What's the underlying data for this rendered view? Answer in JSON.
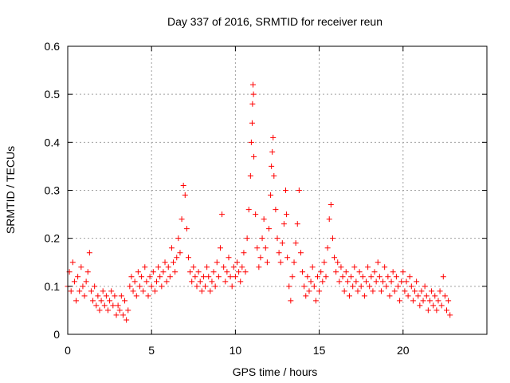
{
  "chart_data": {
    "type": "scatter",
    "title": "Day 337 of 2016, SRMTID for receiver reun",
    "xlabel": "GPS time / hours",
    "ylabel": "SRMTID / TECUs",
    "xlim": [
      0,
      25
    ],
    "ylim": [
      0,
      0.6
    ],
    "xticks": [
      0,
      5,
      10,
      15,
      20
    ],
    "yticks": [
      0,
      0.1,
      0.2,
      0.3,
      0.4,
      0.5,
      0.6
    ],
    "xtick_labels": [
      "0",
      "5",
      "10",
      "15",
      "20"
    ],
    "ytick_labels": [
      "0",
      "0.1",
      "0.2",
      "0.3",
      "0.4",
      "0.5",
      "0.6"
    ],
    "grid": true,
    "marker": "+",
    "series": [
      {
        "name": "SRMTID",
        "color": "#ff0000",
        "points": [
          [
            0.0,
            0.1
          ],
          [
            0.1,
            0.13
          ],
          [
            0.2,
            0.09
          ],
          [
            0.3,
            0.15
          ],
          [
            0.4,
            0.11
          ],
          [
            0.5,
            0.07
          ],
          [
            0.6,
            0.12
          ],
          [
            0.7,
            0.09
          ],
          [
            0.8,
            0.14
          ],
          [
            0.9,
            0.1
          ],
          [
            1.0,
            0.08
          ],
          [
            1.1,
            0.11
          ],
          [
            1.2,
            0.13
          ],
          [
            1.3,
            0.17
          ],
          [
            1.4,
            0.09
          ],
          [
            1.5,
            0.07
          ],
          [
            1.6,
            0.1
          ],
          [
            1.7,
            0.06
          ],
          [
            1.8,
            0.08
          ],
          [
            1.9,
            0.05
          ],
          [
            2.0,
            0.07
          ],
          [
            2.1,
            0.09
          ],
          [
            2.2,
            0.06
          ],
          [
            2.3,
            0.08
          ],
          [
            2.4,
            0.05
          ],
          [
            2.5,
            0.07
          ],
          [
            2.6,
            0.09
          ],
          [
            2.7,
            0.06
          ],
          [
            2.8,
            0.08
          ],
          [
            2.9,
            0.04
          ],
          [
            3.0,
            0.06
          ],
          [
            3.1,
            0.05
          ],
          [
            3.2,
            0.08
          ],
          [
            3.3,
            0.04
          ],
          [
            3.4,
            0.07
          ],
          [
            3.5,
            0.03
          ],
          [
            3.6,
            0.05
          ],
          [
            3.7,
            0.1
          ],
          [
            3.8,
            0.12
          ],
          [
            3.9,
            0.09
          ],
          [
            4.0,
            0.11
          ],
          [
            4.1,
            0.08
          ],
          [
            4.2,
            0.13
          ],
          [
            4.3,
            0.1
          ],
          [
            4.4,
            0.12
          ],
          [
            4.5,
            0.09
          ],
          [
            4.6,
            0.14
          ],
          [
            4.7,
            0.11
          ],
          [
            4.8,
            0.08
          ],
          [
            4.9,
            0.12
          ],
          [
            5.0,
            0.1
          ],
          [
            5.1,
            0.13
          ],
          [
            5.2,
            0.09
          ],
          [
            5.3,
            0.11
          ],
          [
            5.4,
            0.14
          ],
          [
            5.5,
            0.12
          ],
          [
            5.6,
            0.1
          ],
          [
            5.7,
            0.13
          ],
          [
            5.8,
            0.15
          ],
          [
            5.9,
            0.11
          ],
          [
            6.0,
            0.14
          ],
          [
            6.1,
            0.12
          ],
          [
            6.2,
            0.18
          ],
          [
            6.3,
            0.15
          ],
          [
            6.4,
            0.13
          ],
          [
            6.5,
            0.16
          ],
          [
            6.6,
            0.2
          ],
          [
            6.7,
            0.17
          ],
          [
            6.8,
            0.24
          ],
          [
            6.9,
            0.31
          ],
          [
            7.0,
            0.29
          ],
          [
            7.1,
            0.22
          ],
          [
            7.2,
            0.16
          ],
          [
            7.3,
            0.13
          ],
          [
            7.4,
            0.11
          ],
          [
            7.5,
            0.14
          ],
          [
            7.6,
            0.12
          ],
          [
            7.7,
            0.1
          ],
          [
            7.8,
            0.13
          ],
          [
            7.9,
            0.11
          ],
          [
            8.0,
            0.09
          ],
          [
            8.1,
            0.12
          ],
          [
            8.2,
            0.1
          ],
          [
            8.3,
            0.14
          ],
          [
            8.4,
            0.12
          ],
          [
            8.5,
            0.09
          ],
          [
            8.6,
            0.11
          ],
          [
            8.7,
            0.13
          ],
          [
            8.8,
            0.1
          ],
          [
            8.9,
            0.15
          ],
          [
            9.0,
            0.12
          ],
          [
            9.1,
            0.18
          ],
          [
            9.2,
            0.25
          ],
          [
            9.3,
            0.14
          ],
          [
            9.4,
            0.11
          ],
          [
            9.5,
            0.13
          ],
          [
            9.6,
            0.16
          ],
          [
            9.7,
            0.12
          ],
          [
            9.8,
            0.1
          ],
          [
            9.9,
            0.14
          ],
          [
            10.0,
            0.12
          ],
          [
            10.1,
            0.15
          ],
          [
            10.2,
            0.13
          ],
          [
            10.3,
            0.11
          ],
          [
            10.4,
            0.14
          ],
          [
            10.5,
            0.17
          ],
          [
            10.6,
            0.13
          ],
          [
            10.7,
            0.2
          ],
          [
            10.8,
            0.26
          ],
          [
            10.9,
            0.33
          ],
          [
            10.95,
            0.4
          ],
          [
            11.0,
            0.44
          ],
          [
            11.02,
            0.48
          ],
          [
            11.05,
            0.52
          ],
          [
            11.08,
            0.5
          ],
          [
            11.1,
            0.37
          ],
          [
            11.2,
            0.25
          ],
          [
            11.3,
            0.18
          ],
          [
            11.4,
            0.14
          ],
          [
            11.5,
            0.16
          ],
          [
            11.6,
            0.2
          ],
          [
            11.7,
            0.24
          ],
          [
            11.8,
            0.18
          ],
          [
            11.9,
            0.15
          ],
          [
            12.0,
            0.22
          ],
          [
            12.1,
            0.29
          ],
          [
            12.15,
            0.35
          ],
          [
            12.2,
            0.38
          ],
          [
            12.25,
            0.41
          ],
          [
            12.3,
            0.33
          ],
          [
            12.4,
            0.26
          ],
          [
            12.5,
            0.2
          ],
          [
            12.6,
            0.17
          ],
          [
            12.7,
            0.15
          ],
          [
            12.8,
            0.19
          ],
          [
            12.9,
            0.23
          ],
          [
            13.0,
            0.3
          ],
          [
            13.05,
            0.25
          ],
          [
            13.1,
            0.16
          ],
          [
            13.2,
            0.1
          ],
          [
            13.3,
            0.07
          ],
          [
            13.4,
            0.12
          ],
          [
            13.5,
            0.15
          ],
          [
            13.6,
            0.19
          ],
          [
            13.7,
            0.23
          ],
          [
            13.8,
            0.3
          ],
          [
            13.9,
            0.17
          ],
          [
            14.0,
            0.13
          ],
          [
            14.1,
            0.1
          ],
          [
            14.2,
            0.08
          ],
          [
            14.3,
            0.12
          ],
          [
            14.4,
            0.09
          ],
          [
            14.5,
            0.11
          ],
          [
            14.6,
            0.14
          ],
          [
            14.7,
            0.1
          ],
          [
            14.8,
            0.07
          ],
          [
            14.9,
            0.12
          ],
          [
            15.0,
            0.09
          ],
          [
            15.1,
            0.13
          ],
          [
            15.2,
            0.11
          ],
          [
            15.3,
            0.15
          ],
          [
            15.4,
            0.12
          ],
          [
            15.5,
            0.18
          ],
          [
            15.6,
            0.24
          ],
          [
            15.7,
            0.27
          ],
          [
            15.8,
            0.2
          ],
          [
            15.9,
            0.16
          ],
          [
            16.0,
            0.13
          ],
          [
            16.1,
            0.15
          ],
          [
            16.2,
            0.11
          ],
          [
            16.3,
            0.14
          ],
          [
            16.4,
            0.12
          ],
          [
            16.5,
            0.09
          ],
          [
            16.6,
            0.13
          ],
          [
            16.7,
            0.11
          ],
          [
            16.8,
            0.08
          ],
          [
            16.9,
            0.12
          ],
          [
            17.0,
            0.1
          ],
          [
            17.1,
            0.14
          ],
          [
            17.2,
            0.11
          ],
          [
            17.3,
            0.09
          ],
          [
            17.4,
            0.13
          ],
          [
            17.5,
            0.1
          ],
          [
            17.6,
            0.12
          ],
          [
            17.7,
            0.08
          ],
          [
            17.8,
            0.11
          ],
          [
            17.9,
            0.14
          ],
          [
            18.0,
            0.1
          ],
          [
            18.1,
            0.12
          ],
          [
            18.2,
            0.09
          ],
          [
            18.3,
            0.13
          ],
          [
            18.4,
            0.11
          ],
          [
            18.5,
            0.15
          ],
          [
            18.6,
            0.12
          ],
          [
            18.7,
            0.09
          ],
          [
            18.8,
            0.11
          ],
          [
            18.9,
            0.14
          ],
          [
            19.0,
            0.1
          ],
          [
            19.1,
            0.12
          ],
          [
            19.2,
            0.08
          ],
          [
            19.3,
            0.11
          ],
          [
            19.4,
            0.13
          ],
          [
            19.5,
            0.09
          ],
          [
            19.6,
            0.12
          ],
          [
            19.7,
            0.1
          ],
          [
            19.8,
            0.07
          ],
          [
            19.9,
            0.11
          ],
          [
            20.0,
            0.13
          ],
          [
            20.1,
            0.09
          ],
          [
            20.2,
            0.11
          ],
          [
            20.3,
            0.08
          ],
          [
            20.4,
            0.12
          ],
          [
            20.5,
            0.1
          ],
          [
            20.6,
            0.07
          ],
          [
            20.7,
            0.09
          ],
          [
            20.8,
            0.11
          ],
          [
            20.9,
            0.08
          ],
          [
            21.0,
            0.06
          ],
          [
            21.1,
            0.09
          ],
          [
            21.2,
            0.07
          ],
          [
            21.3,
            0.1
          ],
          [
            21.4,
            0.08
          ],
          [
            21.5,
            0.05
          ],
          [
            21.6,
            0.07
          ],
          [
            21.7,
            0.09
          ],
          [
            21.8,
            0.06
          ],
          [
            21.9,
            0.08
          ],
          [
            22.0,
            0.05
          ],
          [
            22.1,
            0.07
          ],
          [
            22.2,
            0.09
          ],
          [
            22.3,
            0.06
          ],
          [
            22.4,
            0.12
          ],
          [
            22.5,
            0.08
          ],
          [
            22.6,
            0.05
          ],
          [
            22.7,
            0.07
          ],
          [
            22.8,
            0.04
          ]
        ]
      }
    ]
  }
}
